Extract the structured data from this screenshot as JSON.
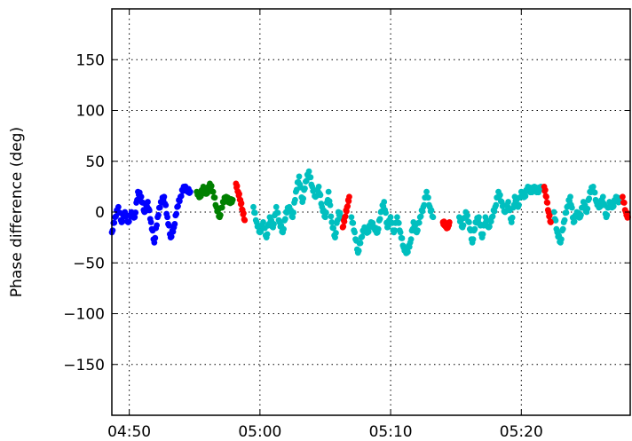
{
  "chart_data": {
    "type": "scatter",
    "title": "",
    "xlabel": "",
    "ylabel": "Phase difference (deg)",
    "x_unit": "time (HH:MM)",
    "xlim": [
      "04:48:40",
      "05:28:20"
    ],
    "ylim": [
      -200,
      200
    ],
    "x_ticks": [
      "04:50",
      "05:00",
      "05:10",
      "05:20"
    ],
    "y_ticks": [
      150,
      100,
      50,
      0,
      -50,
      -100,
      -150
    ],
    "grid": true,
    "legend": "none",
    "series": [
      {
        "color": "#0000ff",
        "points": [
          [
            "04:48:40",
            -20
          ],
          [
            "04:48:55",
            -5
          ],
          [
            "04:49:10",
            5
          ],
          [
            "04:49:25",
            -10
          ],
          [
            "04:49:40",
            0
          ],
          [
            "04:49:55",
            -10
          ],
          [
            "04:50:10",
            0
          ],
          [
            "04:50:25",
            -5
          ],
          [
            "04:50:40",
            20
          ],
          [
            "04:50:55",
            15
          ],
          [
            "04:51:10",
            0
          ],
          [
            "04:51:25",
            10
          ],
          [
            "04:51:40",
            -10
          ],
          [
            "04:51:55",
            -30
          ],
          [
            "04:52:10",
            -5
          ],
          [
            "04:52:25",
            10
          ],
          [
            "04:52:40",
            15
          ],
          [
            "04:52:55",
            -5
          ],
          [
            "04:53:10",
            -25
          ],
          [
            "04:53:25",
            -15
          ],
          [
            "04:53:40",
            5
          ],
          [
            "04:53:55",
            15
          ],
          [
            "04:54:10",
            25
          ],
          [
            "04:54:25",
            22
          ],
          [
            "04:54:40",
            20
          ]
        ]
      },
      {
        "color": "#008000",
        "points": [
          [
            "04:55:10",
            20
          ],
          [
            "04:55:25",
            15
          ],
          [
            "04:55:40",
            25
          ],
          [
            "04:55:55",
            18
          ],
          [
            "04:56:10",
            28
          ],
          [
            "04:56:25",
            20
          ],
          [
            "04:56:40",
            5
          ],
          [
            "04:56:55",
            -5
          ],
          [
            "04:57:10",
            10
          ],
          [
            "04:57:25",
            15
          ],
          [
            "04:57:40",
            10
          ],
          [
            "04:57:55",
            12
          ]
        ]
      },
      {
        "color": "#ff0000",
        "points": [
          [
            "04:58:10",
            28
          ],
          [
            "04:58:20",
            20
          ],
          [
            "04:58:30",
            12
          ],
          [
            "04:58:40",
            2
          ],
          [
            "04:58:50",
            -8
          ]
        ]
      },
      {
        "color": "#00bfbf",
        "points": [
          [
            "04:59:30",
            5
          ],
          [
            "04:59:45",
            -10
          ],
          [
            "05:00:00",
            -20
          ],
          [
            "05:00:15",
            -10
          ],
          [
            "05:00:30",
            -25
          ],
          [
            "05:00:45",
            -5
          ],
          [
            "05:01:00",
            -15
          ],
          [
            "05:01:15",
            5
          ],
          [
            "05:01:30",
            -10
          ],
          [
            "05:01:45",
            -20
          ],
          [
            "05:02:00",
            0
          ],
          [
            "05:02:15",
            5
          ],
          [
            "05:02:30",
            -5
          ],
          [
            "05:02:45",
            20
          ],
          [
            "05:03:00",
            35
          ],
          [
            "05:03:15",
            10
          ],
          [
            "05:03:30",
            30
          ],
          [
            "05:03:45",
            40
          ],
          [
            "05:04:00",
            25
          ],
          [
            "05:04:15",
            15
          ],
          [
            "05:04:30",
            25
          ],
          [
            "05:04:45",
            5
          ],
          [
            "05:05:00",
            -5
          ],
          [
            "05:05:15",
            20
          ],
          [
            "05:05:30",
            -10
          ],
          [
            "05:05:45",
            -25
          ],
          [
            "05:06:00",
            0
          ],
          [
            "05:06:15",
            -5
          ],
          [
            "05:07:00",
            -5
          ],
          [
            "05:07:15",
            -20
          ],
          [
            "05:07:30",
            -40
          ],
          [
            "05:07:45",
            -25
          ],
          [
            "05:08:00",
            -15
          ],
          [
            "05:08:15",
            -20
          ],
          [
            "05:08:30",
            -10
          ],
          [
            "05:08:45",
            -15
          ],
          [
            "05:09:00",
            -20
          ],
          [
            "05:09:15",
            0
          ],
          [
            "05:09:30",
            10
          ],
          [
            "05:09:45",
            -15
          ],
          [
            "05:10:00",
            -5
          ],
          [
            "05:10:15",
            -20
          ],
          [
            "05:10:30",
            -5
          ],
          [
            "05:10:45",
            -20
          ],
          [
            "05:11:00",
            -35
          ],
          [
            "05:11:15",
            -40
          ],
          [
            "05:11:30",
            -30
          ],
          [
            "05:11:45",
            -10
          ],
          [
            "05:12:00",
            -20
          ],
          [
            "05:12:15",
            -5
          ],
          [
            "05:12:30",
            5
          ],
          [
            "05:12:45",
            20
          ],
          [
            "05:13:00",
            5
          ],
          [
            "05:13:15",
            -5
          ],
          [
            "05:15:15",
            -5
          ],
          [
            "05:15:30",
            -15
          ],
          [
            "05:15:45",
            0
          ],
          [
            "05:16:00",
            -10
          ],
          [
            "05:16:15",
            -30
          ],
          [
            "05:16:30",
            -10
          ],
          [
            "05:16:45",
            -5
          ],
          [
            "05:17:00",
            -25
          ],
          [
            "05:17:15",
            -5
          ],
          [
            "05:17:30",
            -15
          ],
          [
            "05:17:45",
            -5
          ],
          [
            "05:18:00",
            5
          ],
          [
            "05:18:15",
            20
          ],
          [
            "05:18:30",
            10
          ],
          [
            "05:18:45",
            0
          ],
          [
            "05:19:00",
            10
          ],
          [
            "05:19:15",
            -10
          ],
          [
            "05:19:30",
            15
          ],
          [
            "05:19:45",
            5
          ],
          [
            "05:20:00",
            20
          ],
          [
            "05:20:15",
            15
          ],
          [
            "05:20:30",
            25
          ],
          [
            "05:20:45",
            20
          ],
          [
            "05:21:00",
            25
          ],
          [
            "05:21:15",
            20
          ],
          [
            "05:21:30",
            25
          ],
          [
            "05:22:30",
            0
          ],
          [
            "05:22:45",
            -20
          ],
          [
            "05:23:00",
            -30
          ],
          [
            "05:23:15",
            -10
          ],
          [
            "05:23:30",
            5
          ],
          [
            "05:23:45",
            15
          ],
          [
            "05:24:00",
            -10
          ],
          [
            "05:24:15",
            0
          ],
          [
            "05:24:30",
            -5
          ],
          [
            "05:24:45",
            10
          ],
          [
            "05:25:00",
            0
          ],
          [
            "05:25:15",
            20
          ],
          [
            "05:25:30",
            25
          ],
          [
            "05:25:45",
            10
          ],
          [
            "05:26:00",
            5
          ],
          [
            "05:26:15",
            15
          ],
          [
            "05:26:30",
            -5
          ],
          [
            "05:26:45",
            10
          ],
          [
            "05:27:00",
            5
          ],
          [
            "05:27:15",
            15
          ],
          [
            "05:27:30",
            10
          ]
        ]
      },
      {
        "color": "#ff0000",
        "points": [
          [
            "05:06:20",
            -15
          ],
          [
            "05:06:30",
            -5
          ],
          [
            "05:06:40",
            5
          ],
          [
            "05:06:50",
            15
          ],
          [
            "05:14:00",
            -10
          ],
          [
            "05:14:10",
            -12
          ],
          [
            "05:14:20",
            -15
          ],
          [
            "05:14:30",
            -10
          ],
          [
            "05:21:45",
            25
          ],
          [
            "05:21:55",
            15
          ],
          [
            "05:22:05",
            0
          ],
          [
            "05:22:15",
            -10
          ],
          [
            "05:27:45",
            15
          ],
          [
            "05:28:00",
            0
          ],
          [
            "05:28:10",
            -5
          ]
        ]
      }
    ]
  }
}
